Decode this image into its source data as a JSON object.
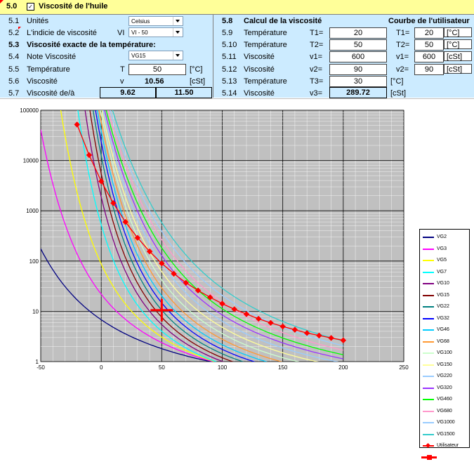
{
  "header": {
    "section": "5.0",
    "title": "Viscosité de l'huile"
  },
  "left": {
    "rows": [
      {
        "num": "5.1",
        "label": "Unités"
      },
      {
        "num": "5.2",
        "label": "L'indicie de viscosité",
        "sym": "VI"
      },
      {
        "num": "5.3",
        "label": "Viscosité exacte de la température:"
      },
      {
        "num": "5.4",
        "label": "Note Viscosité"
      },
      {
        "num": "5.5",
        "label": "Température",
        "sym": "T",
        "value": "50",
        "unit": "[°C]"
      },
      {
        "num": "5.6",
        "label": "Viscosité",
        "sym": "v",
        "value": "10.56",
        "unit": "[cSt]"
      },
      {
        "num": "5.7",
        "label": "Viscosité de/à",
        "value_from": "9.62",
        "value_to": "11.50"
      }
    ],
    "units_select": "Celsius",
    "vi_select": "VI - 50",
    "grade_select": "VG15"
  },
  "calc": {
    "num": "5.8",
    "title": "Calcul de la viscosité",
    "rows": [
      {
        "num": "5.9",
        "label": "Température",
        "sym": "T1=",
        "value": "20"
      },
      {
        "num": "5.10",
        "label": "Température",
        "sym": "T2=",
        "value": "50"
      },
      {
        "num": "5.11",
        "label": "Viscosité",
        "sym": "v1=",
        "value": "600"
      },
      {
        "num": "5.12",
        "label": "Viscosité",
        "sym": "v2=",
        "value": "90"
      },
      {
        "num": "5.13",
        "label": "Température",
        "sym": "T3=",
        "value": "30",
        "unit": "[°C]"
      },
      {
        "num": "5.14",
        "label": "Viscosité",
        "sym": "v3=",
        "value": "289.72",
        "unit": "[cSt]"
      }
    ]
  },
  "user_curve": {
    "title": "Courbe de l'utilisateur",
    "rows": [
      {
        "sym": "T1=",
        "value": "20",
        "unit": "[°C]"
      },
      {
        "sym": "T2=",
        "value": "50",
        "unit": "[°C]"
      },
      {
        "sym": "v1=",
        "value": "600",
        "unit": "[cSt]"
      },
      {
        "sym": "v2=",
        "value": "90",
        "unit": "[cSt]"
      }
    ]
  },
  "chart_data": {
    "type": "line",
    "title": "",
    "xlabel": "",
    "ylabel": "",
    "xlim": [
      -50,
      250
    ],
    "ylim": [
      1,
      100000
    ],
    "y_scale": "log",
    "x_ticks": [
      "-50",
      "0",
      "50",
      "100",
      "150",
      "200",
      "250"
    ],
    "y_ticks": [
      "1",
      "10",
      "100",
      "1000",
      "10000",
      "100000"
    ],
    "grid": true,
    "legend_position": "right",
    "series": [
      {
        "name": "VG2",
        "color": "#000080",
        "v40": 2.2
      },
      {
        "name": "VG3",
        "color": "#ff00ff",
        "v40": 3.2
      },
      {
        "name": "VG5",
        "color": "#ffff00",
        "v40": 4.6
      },
      {
        "name": "VG7",
        "color": "#00ffff",
        "v40": 6.8
      },
      {
        "name": "VG10",
        "color": "#800080",
        "v40": 10
      },
      {
        "name": "VG15",
        "color": "#800000",
        "v40": 15
      },
      {
        "name": "VG22",
        "color": "#008080",
        "v40": 22
      },
      {
        "name": "VG32",
        "color": "#0000ff",
        "v40": 32
      },
      {
        "name": "VG46",
        "color": "#00ccff",
        "v40": 46
      },
      {
        "name": "VG68",
        "color": "#ff9933",
        "v40": 68
      },
      {
        "name": "VG100",
        "color": "#ccffcc",
        "v40": 100
      },
      {
        "name": "VG150",
        "color": "#ffff99",
        "v40": 150
      },
      {
        "name": "VG220",
        "color": "#99ccff",
        "v40": 220
      },
      {
        "name": "VG320",
        "color": "#9933ff",
        "v40": 320
      },
      {
        "name": "VG460",
        "color": "#00ff00",
        "v40": 460
      },
      {
        "name": "VG680",
        "color": "#ff99cc",
        "v40": 680
      },
      {
        "name": "VG1000",
        "color": "#99ccff",
        "v40": 1000
      },
      {
        "name": "VG1500",
        "color": "#33cccc",
        "v40": 1500
      }
    ],
    "user_series": {
      "name": "Utilisateur",
      "color": "#ff0000",
      "points": [
        [
          -20,
          52000
        ],
        [
          -10,
          12800
        ],
        [
          0,
          3850
        ],
        [
          10,
          1420
        ],
        [
          20,
          600
        ],
        [
          30,
          290
        ],
        [
          40,
          155
        ],
        [
          50,
          90
        ],
        [
          60,
          56
        ],
        [
          70,
          37
        ],
        [
          80,
          26
        ],
        [
          90,
          19
        ],
        [
          100,
          14.2
        ],
        [
          110,
          11.0
        ],
        [
          120,
          8.8
        ],
        [
          130,
          7.1
        ],
        [
          140,
          5.9
        ],
        [
          150,
          5.0
        ],
        [
          160,
          4.3
        ],
        [
          170,
          3.7
        ],
        [
          180,
          3.3
        ],
        [
          190,
          2.95
        ],
        [
          200,
          2.65
        ]
      ]
    },
    "marker": {
      "name": "marker",
      "x": 50,
      "y": 10.56,
      "color": "#ff0000"
    }
  }
}
